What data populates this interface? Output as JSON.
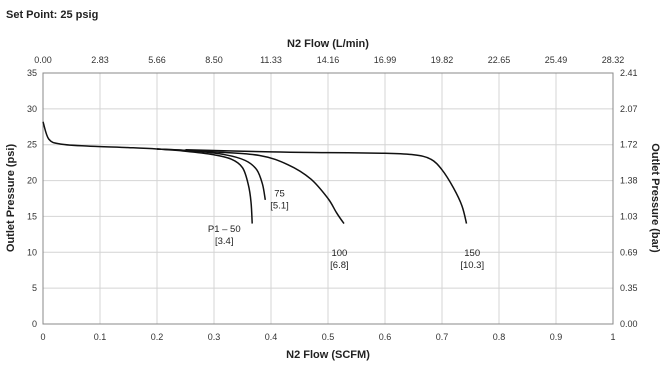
{
  "set_point_label": "Set Point: 25 psig",
  "chart_data": {
    "type": "line",
    "x": {
      "label": "N2 Flow (SCFM)",
      "range": [
        0,
        1
      ],
      "ticks": [
        "0",
        "0.1",
        "0.2",
        "0.3",
        "0.4",
        "0.5",
        "0.6",
        "0.7",
        "0.8",
        "0.9",
        "1"
      ]
    },
    "x_top": {
      "label": "N2 Flow (L/min)",
      "ticks": [
        "0.00",
        "2.83",
        "5.66",
        "8.50",
        "11.33",
        "14.16",
        "16.99",
        "19.82",
        "22.65",
        "25.49",
        "28.32"
      ]
    },
    "y": {
      "label": "Outlet Pressure (psi)",
      "range": [
        0,
        35
      ],
      "ticks": [
        "0",
        "5",
        "10",
        "15",
        "20",
        "25",
        "30",
        "35"
      ]
    },
    "y_right": {
      "label": "Outlet Pressure (bar)",
      "ticks": [
        "0.00",
        "0.35",
        "0.69",
        "1.03",
        "1.38",
        "1.72",
        "2.07",
        "2.41"
      ]
    },
    "grid": true,
    "series": [
      {
        "label_lines": [
          "P1 – 50",
          "[3.4]"
        ],
        "label_at": [
          0.318,
          12.8
        ],
        "points": [
          [
            0,
            28.2
          ],
          [
            0.01,
            25.8
          ],
          [
            0.03,
            25.1
          ],
          [
            0.08,
            24.8
          ],
          [
            0.15,
            24.6
          ],
          [
            0.2,
            24.4
          ],
          [
            0.25,
            24.1
          ],
          [
            0.3,
            23.6
          ],
          [
            0.33,
            23
          ],
          [
            0.35,
            21.8
          ],
          [
            0.36,
            19.5
          ],
          [
            0.365,
            17
          ],
          [
            0.367,
            14
          ]
        ]
      },
      {
        "label_lines": [
          "75",
          "[5.1]"
        ],
        "label_at": [
          0.415,
          17.8
        ],
        "points": [
          [
            0.2,
            24.4
          ],
          [
            0.26,
            24.15
          ],
          [
            0.32,
            23.6
          ],
          [
            0.355,
            22.8
          ],
          [
            0.375,
            21.5
          ],
          [
            0.385,
            19.5
          ],
          [
            0.39,
            17.3
          ]
        ]
      },
      {
        "label_lines": [
          "100",
          "[6.8]"
        ],
        "label_at": [
          0.52,
          9.5
        ],
        "points": [
          [
            0.2,
            24.4
          ],
          [
            0.3,
            24
          ],
          [
            0.38,
            23.5
          ],
          [
            0.43,
            22.2
          ],
          [
            0.47,
            20.2
          ],
          [
            0.5,
            17.5
          ],
          [
            0.515,
            15.5
          ],
          [
            0.528,
            14
          ]
        ]
      },
      {
        "label_lines": [
          "150",
          "[10.3]"
        ],
        "label_at": [
          0.753,
          9.5
        ],
        "points": [
          [
            0.25,
            24.3
          ],
          [
            0.4,
            24
          ],
          [
            0.5,
            23.9
          ],
          [
            0.6,
            23.8
          ],
          [
            0.65,
            23.6
          ],
          [
            0.68,
            23
          ],
          [
            0.7,
            21.5
          ],
          [
            0.72,
            19
          ],
          [
            0.735,
            16.5
          ],
          [
            0.743,
            14
          ]
        ]
      }
    ]
  }
}
